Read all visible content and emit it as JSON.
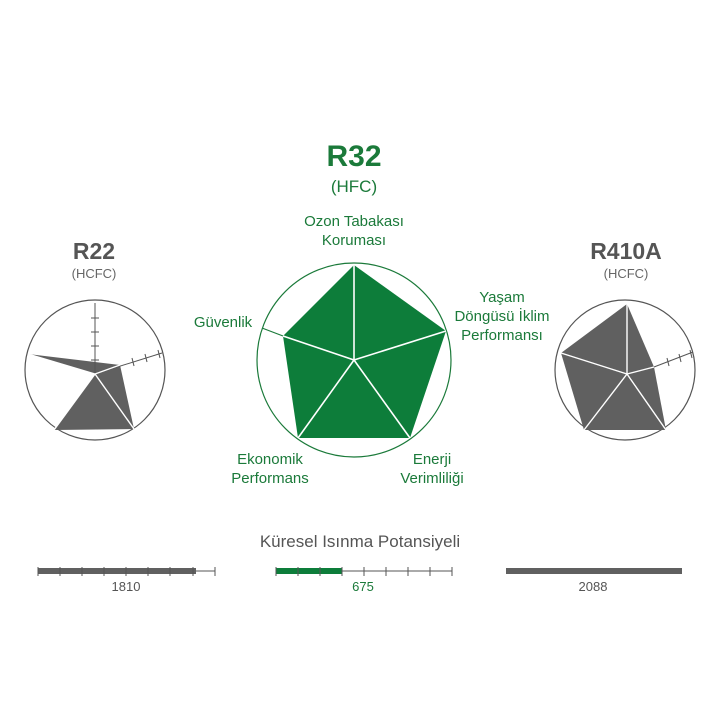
{
  "left": {
    "name": "R22",
    "type": "(HCFC)"
  },
  "center": {
    "name": "R32",
    "type": "(HFC)"
  },
  "right": {
    "name": "R410A",
    "type": "(HCFC)"
  },
  "axes": {
    "top": [
      "Ozon Tabakası",
      "Koruması"
    ],
    "upper_right": [
      "Yaşam",
      "Döngüsü İklim",
      "Performansı"
    ],
    "lower_right": [
      "Enerji",
      "Verimliliği"
    ],
    "lower_left": [
      "Ekonomik",
      "Performans"
    ],
    "upper_left": [
      "Güvenlik"
    ]
  },
  "gwp": {
    "title": "Küresel Isınma Potansiyeli",
    "left_value": "1810",
    "center_value": "675",
    "right_value": "2088"
  },
  "colors": {
    "green": "#1b7a3a",
    "gray": "#606060"
  }
}
